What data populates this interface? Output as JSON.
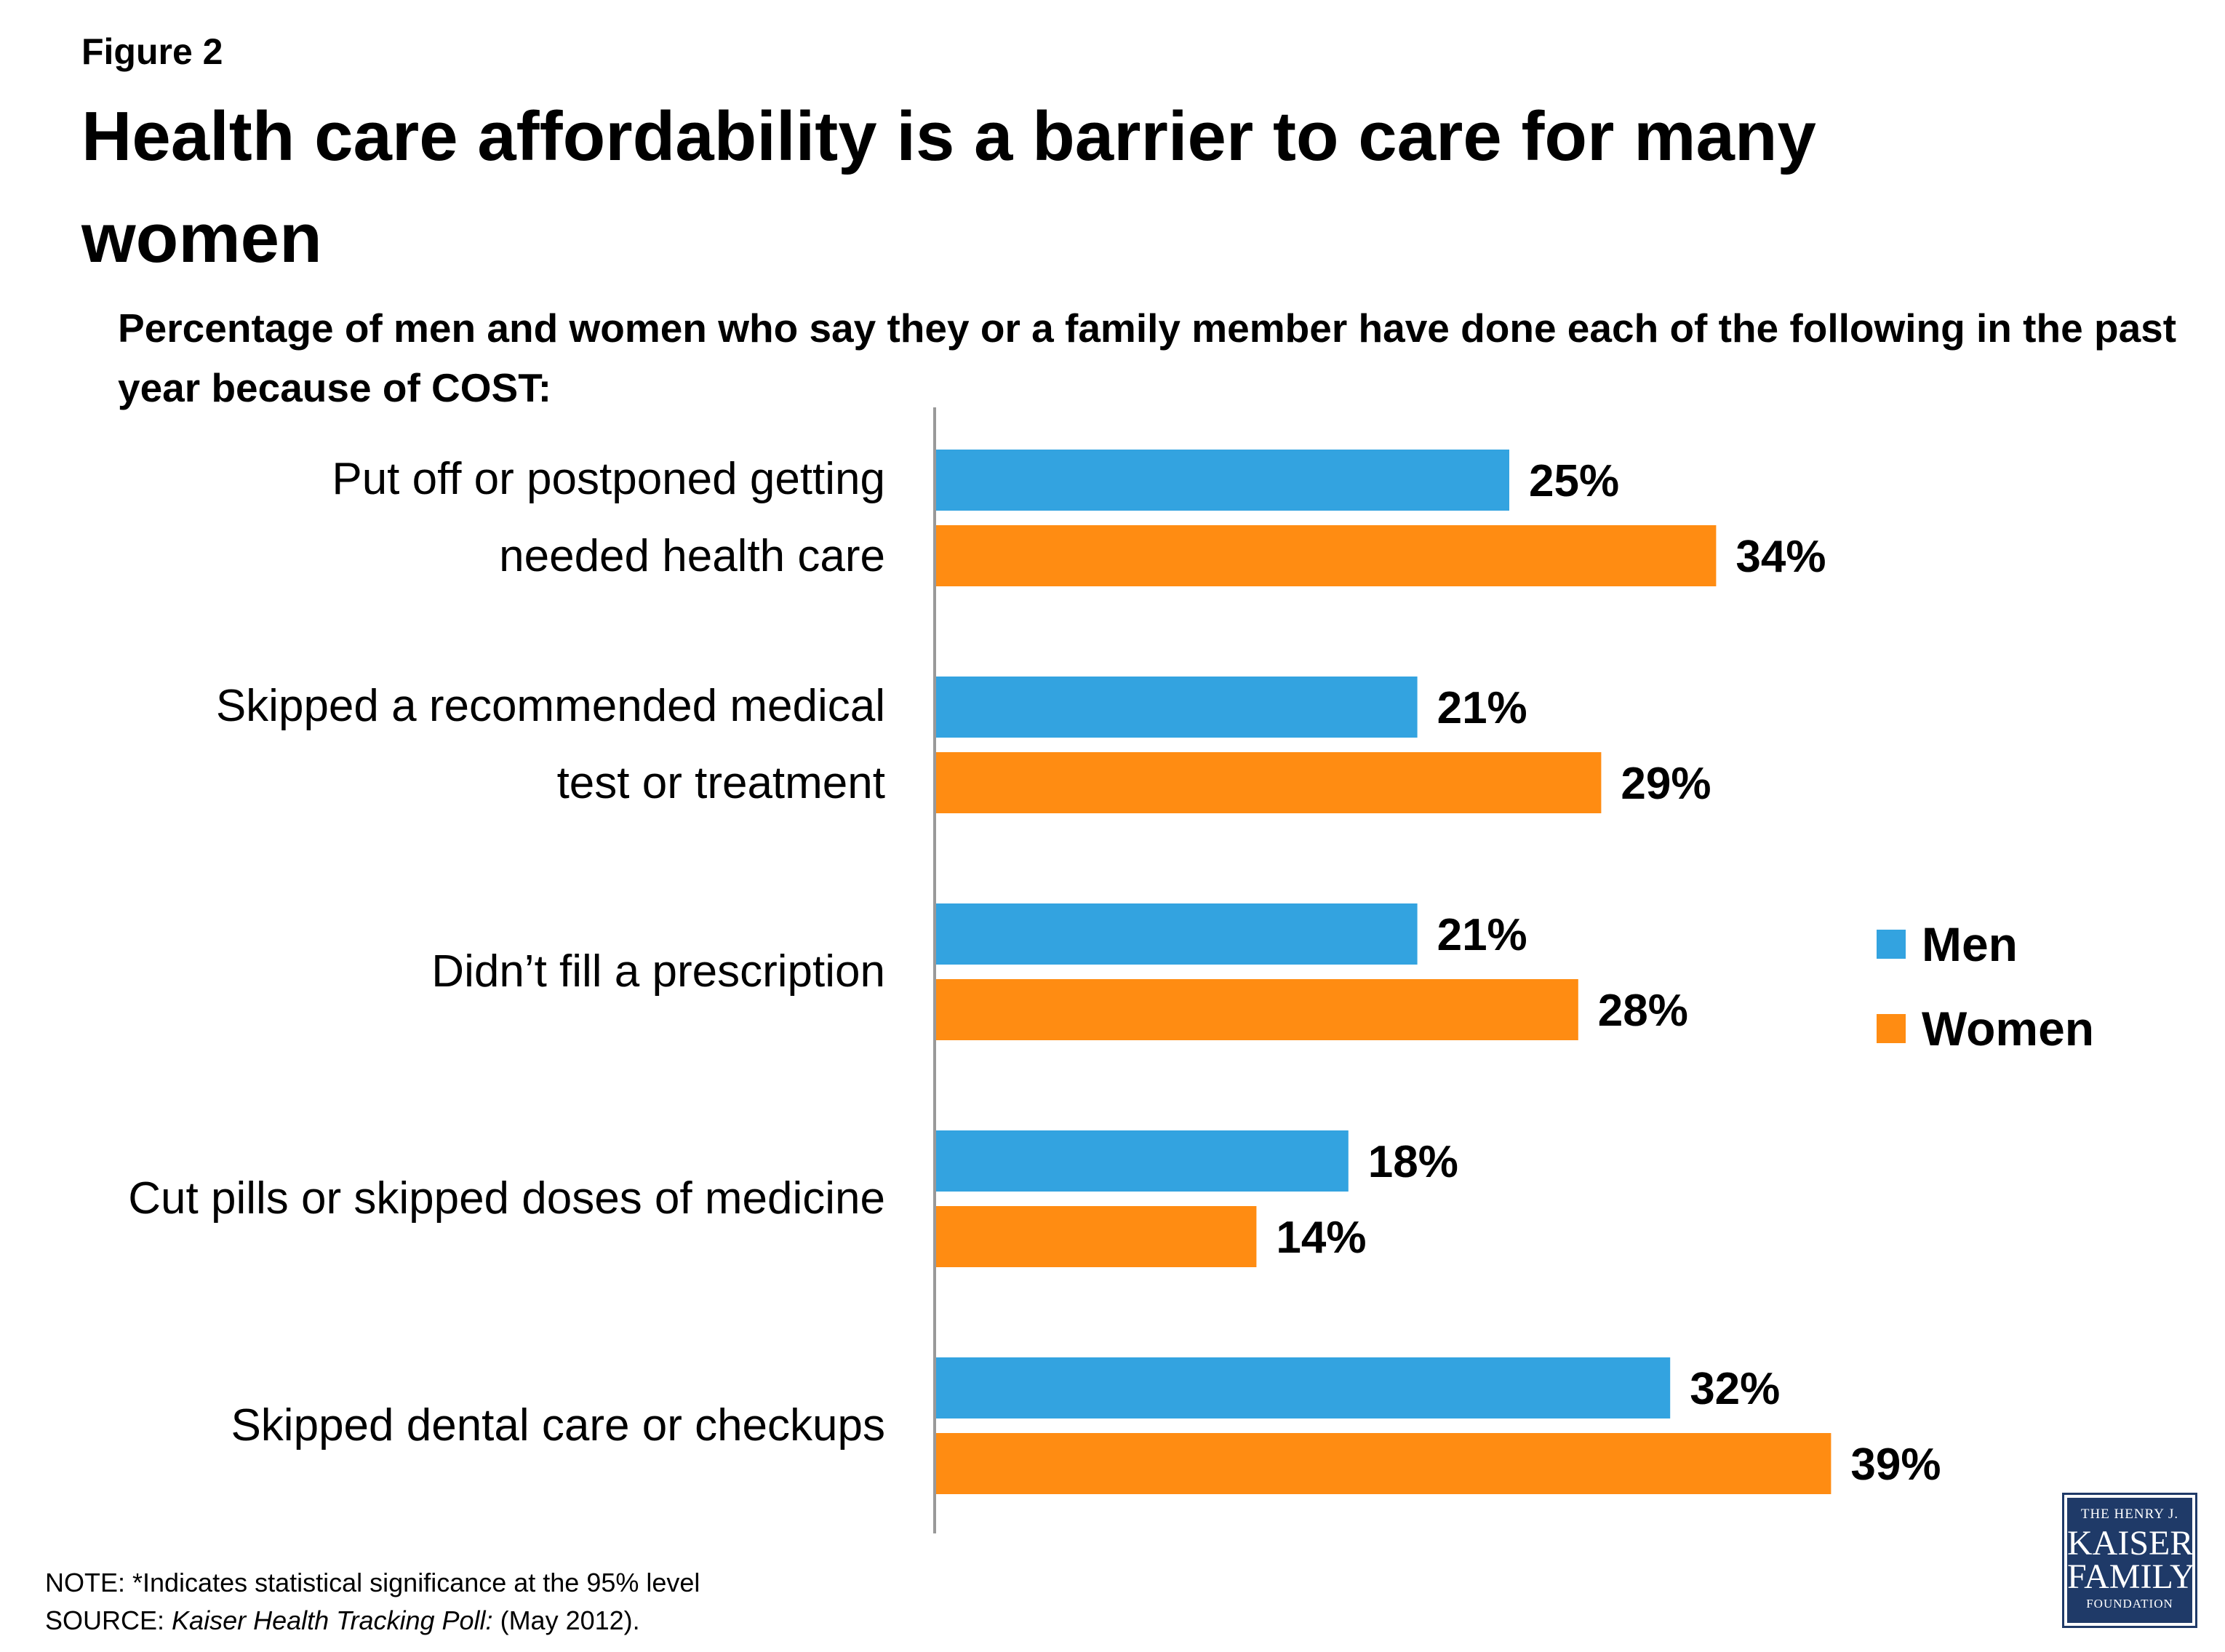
{
  "figure_label": "Figure 2",
  "title": "Health care affordability is a barrier to care for many women",
  "subtitle": "Percentage of men and women who say they or a family member have done each of the following in the past year because of COST:",
  "chart_data": {
    "type": "bar",
    "orientation": "horizontal",
    "categories": [
      [
        "Put off or postponed getting",
        "needed health care"
      ],
      [
        "Skipped a recommended medical",
        "test or treatment"
      ],
      [
        "Didn’t fill a prescription"
      ],
      [
        "Cut pills or skipped doses of medicine"
      ],
      [
        "Skipped dental care or checkups"
      ]
    ],
    "series": [
      {
        "name": "Men",
        "color": "#33a3e0",
        "values": [
          25,
          21,
          21,
          18,
          32
        ],
        "labels": [
          "25%",
          "21%",
          "21%",
          "18%",
          "32%"
        ]
      },
      {
        "name": "Women",
        "color": "#ff8c12",
        "values": [
          34,
          29,
          28,
          14,
          39
        ],
        "labels": [
          "34%",
          "29%",
          "28%",
          "14%",
          "39%"
        ]
      }
    ],
    "xlim": [
      0,
      100
    ],
    "grid": false,
    "legend_position": "right"
  },
  "legend": {
    "men": "Men",
    "women": "Women"
  },
  "note": "NOTE: *Indicates statistical significance at the 95% level",
  "source_prefix": "SOURCE:",
  "source_italic": "Kaiser Health Tracking Poll:",
  "source_suffix": "(May 2012).",
  "logo": {
    "line1": "THE HENRY J.",
    "line2": "KAISER",
    "line3": "FAMILY",
    "line4": "FOUNDATION"
  }
}
